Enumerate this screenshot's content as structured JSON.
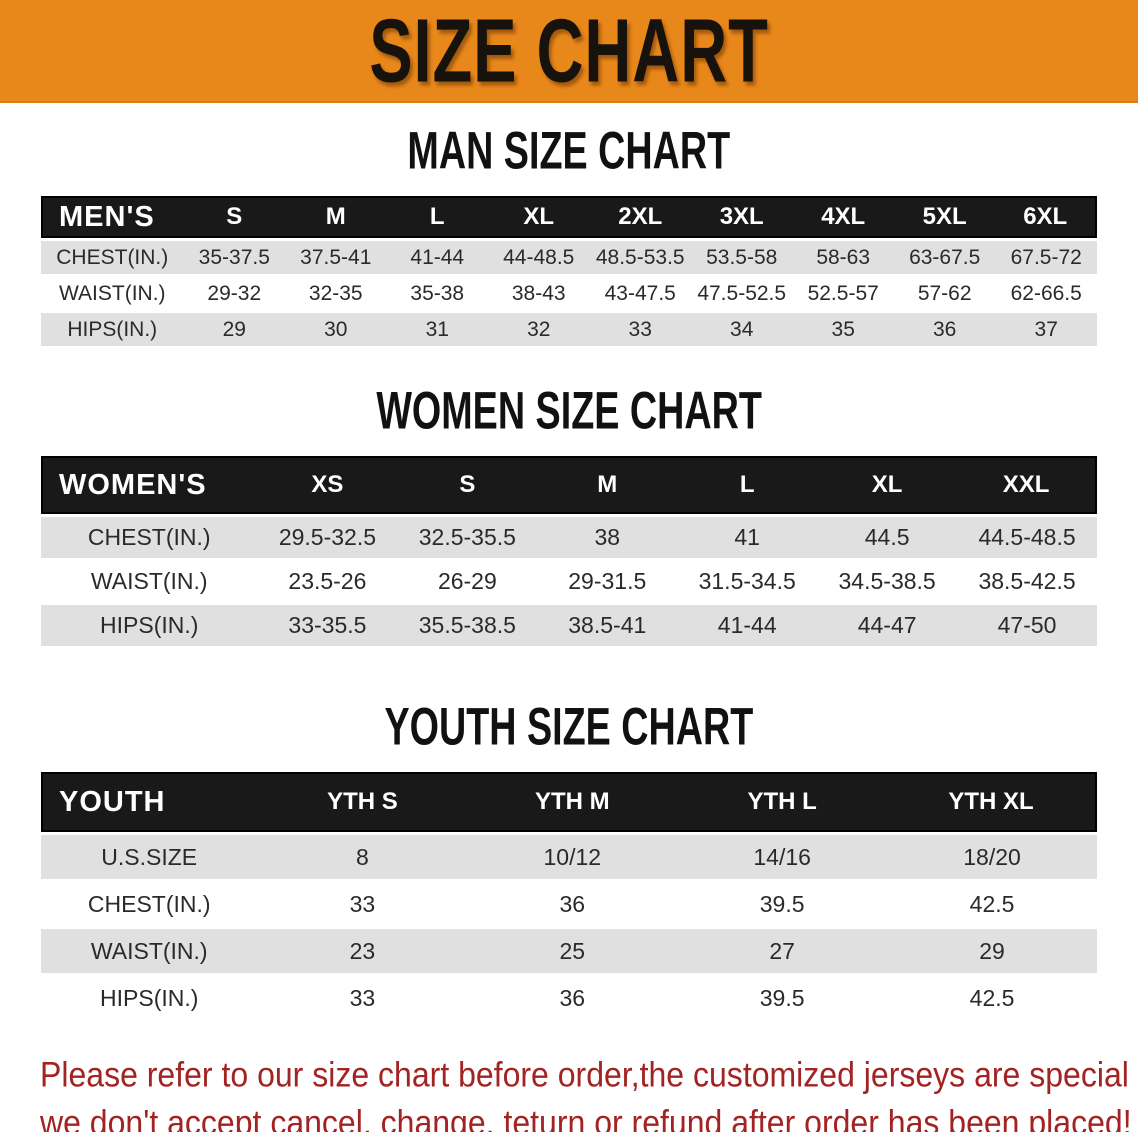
{
  "banner": {
    "title": "SIZE CHART",
    "background_color": "#E8871A",
    "text_color": "#17120c"
  },
  "colors": {
    "table_header_bg": "#191919",
    "table_row_shaded": "#E0E0E0",
    "disclaimer_red": "#A32222"
  },
  "sections": [
    {
      "heading": "MAN SIZE CHART",
      "table": {
        "header_label": "MEN'S",
        "columns": [
          "S",
          "M",
          "L",
          "XL",
          "2XL",
          "3XL",
          "4XL",
          "5XL",
          "6XL"
        ],
        "rows": [
          {
            "label": "CHEST(IN.)",
            "values": [
              "35-37.5",
              "37.5-41",
              "41-44",
              "44-48.5",
              "48.5-53.5",
              "53.5-58",
              "58-63",
              "63-67.5",
              "67.5-72"
            ]
          },
          {
            "label": "WAIST(IN.)",
            "values": [
              "29-32",
              "32-35",
              "35-38",
              "38-43",
              "43-47.5",
              "47.5-52.5",
              "52.5-57",
              "57-62",
              "62-66.5"
            ]
          },
          {
            "label": "HIPS(IN.)",
            "values": [
              "29",
              "30",
              "31",
              "32",
              "33",
              "34",
              "35",
              "36",
              "37"
            ]
          }
        ]
      }
    },
    {
      "heading": "WOMEN SIZE CHART",
      "table": {
        "header_label": "WOMEN'S",
        "columns": [
          "XS",
          "S",
          "M",
          "L",
          "XL",
          "XXL"
        ],
        "rows": [
          {
            "label": "CHEST(IN.)",
            "values": [
              "29.5-32.5",
              "32.5-35.5",
              "38",
              "41",
              "44.5",
              "44.5-48.5"
            ]
          },
          {
            "label": "WAIST(IN.)",
            "values": [
              "23.5-26",
              "26-29",
              "29-31.5",
              "31.5-34.5",
              "34.5-38.5",
              "38.5-42.5"
            ]
          },
          {
            "label": "HIPS(IN.)",
            "values": [
              "33-35.5",
              "35.5-38.5",
              "38.5-41",
              "41-44",
              "44-47",
              "47-50"
            ]
          }
        ]
      }
    },
    {
      "heading": "YOUTH SIZE CHART",
      "table": {
        "header_label": "YOUTH",
        "columns": [
          "YTH S",
          "YTH M",
          "YTH L",
          "YTH XL"
        ],
        "rows": [
          {
            "label": "U.S.SIZE",
            "values": [
              "8",
              "10/12",
              "14/16",
              "18/20"
            ]
          },
          {
            "label": "CHEST(IN.)",
            "values": [
              "33",
              "36",
              "39.5",
              "42.5"
            ]
          },
          {
            "label": "WAIST(IN.)",
            "values": [
              "23",
              "25",
              "27",
              "29"
            ]
          },
          {
            "label": "HIPS(IN.)",
            "values": [
              "33",
              "36",
              "39.5",
              "42.5"
            ]
          }
        ]
      }
    }
  ],
  "disclaimer": {
    "line1": "Please refer to our size chart before order,the customized jerseys are special products,",
    "line2": "we don't accept cancel, change, teturn or refund after order has been placed!"
  }
}
